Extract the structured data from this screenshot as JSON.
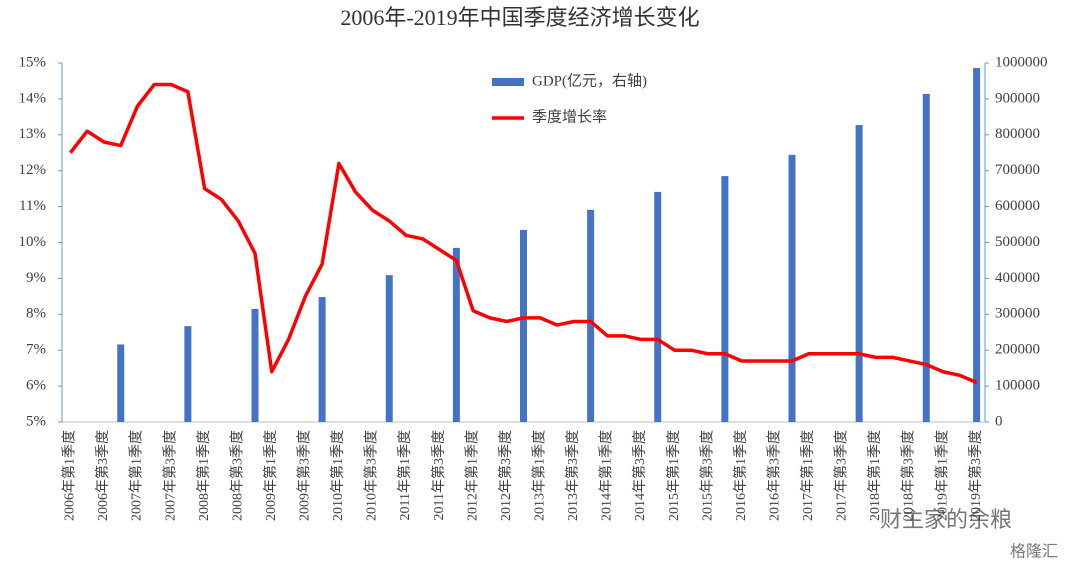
{
  "chart_data": {
    "type": "combo",
    "title": "2006年-2019年中国季度经济增长变化",
    "categories": [
      "2006年第1季度",
      null,
      "2006年第3季度",
      null,
      "2007年第1季度",
      null,
      "2007年第3季度",
      null,
      "2008年第1季度",
      null,
      "2008年第3季度",
      null,
      "2009年第1季度",
      null,
      "2009年第3季度",
      null,
      "2010年第1季度",
      null,
      "2010年第3季度",
      null,
      "2011年第1季度",
      null,
      "2011年第3季度",
      null,
      "2012年第1季度",
      null,
      "2012年第3季度",
      null,
      "2013年第1季度",
      null,
      "2013年第3季度",
      null,
      "2014年第1季度",
      null,
      "2014年第3季度",
      null,
      "2015年第1季度",
      null,
      "2015年第3季度",
      null,
      "2016年第1季度",
      null,
      "2016年第3季度",
      null,
      "2017年第1季度",
      null,
      "2017年第3季度",
      null,
      "2018年第1季度",
      null,
      "2018年第3季度",
      null,
      "2019年第1季度",
      null,
      "2019年第3季度"
    ],
    "series": [
      {
        "name": "GDP(亿元，右轴)",
        "type": "bar",
        "axis": "y2",
        "color": "#4472c4",
        "values": [
          null,
          null,
          null,
          216000,
          null,
          null,
          null,
          267000,
          null,
          null,
          null,
          315000,
          null,
          null,
          null,
          348000,
          null,
          null,
          null,
          409000,
          null,
          null,
          null,
          485000,
          null,
          null,
          null,
          535000,
          null,
          null,
          null,
          591000,
          null,
          null,
          null,
          641000,
          null,
          null,
          null,
          685000,
          null,
          null,
          null,
          744000,
          null,
          null,
          null,
          827000,
          null,
          null,
          null,
          914000,
          null,
          null,
          986000
        ]
      },
      {
        "name": "季度增长率",
        "type": "line",
        "color": "#ff0000",
        "values": [
          12.5,
          13.1,
          12.8,
          12.7,
          13.8,
          14.4,
          14.4,
          14.2,
          11.5,
          11.2,
          10.6,
          9.7,
          6.4,
          7.3,
          8.5,
          9.4,
          12.2,
          11.4,
          10.9,
          10.6,
          10.2,
          10.1,
          9.8,
          9.5,
          8.1,
          7.9,
          7.8,
          7.9,
          7.9,
          7.7,
          7.8,
          7.8,
          7.4,
          7.4,
          7.3,
          7.3,
          7.0,
          7.0,
          6.9,
          6.9,
          6.7,
          6.7,
          6.7,
          6.7,
          6.9,
          6.9,
          6.9,
          6.9,
          6.8,
          6.8,
          6.7,
          6.6,
          6.4,
          6.3,
          6.1
        ]
      }
    ],
    "ylim": [
      5,
      15
    ],
    "yticks": [
      {
        "value": 5,
        "label": "5%"
      },
      {
        "value": 6,
        "label": "6%"
      },
      {
        "value": 7,
        "label": "7%"
      },
      {
        "value": 8,
        "label": "8%"
      },
      {
        "value": 9,
        "label": "9%"
      },
      {
        "value": 10,
        "label": "10%"
      },
      {
        "value": 11,
        "label": "11%"
      },
      {
        "value": 12,
        "label": "12%"
      },
      {
        "value": 13,
        "label": "13%"
      },
      {
        "value": 14,
        "label": "14%"
      },
      {
        "value": 15,
        "label": "15%"
      }
    ],
    "y2lim": [
      0,
      1000000
    ],
    "y2ticks": [
      0,
      100000,
      200000,
      300000,
      400000,
      500000,
      600000,
      700000,
      800000,
      900000,
      1000000
    ],
    "grid": false,
    "legend": "top",
    "watermark": [
      "财主家的余粮",
      "格隆汇"
    ]
  }
}
